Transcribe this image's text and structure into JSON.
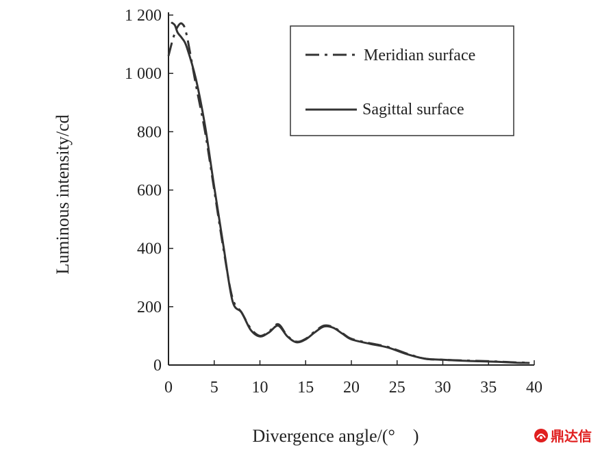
{
  "chart_data": {
    "type": "line",
    "title": "",
    "xlabel": "Divergence angle/(° )",
    "ylabel": "Luminous intensity/cd",
    "xlim": [
      0,
      40
    ],
    "ylim": [
      0,
      1200
    ],
    "x_ticks": [
      0,
      5,
      10,
      15,
      20,
      25,
      30,
      35,
      40
    ],
    "x_tick_labels": [
      "0",
      "5",
      "10",
      "15",
      "20",
      "25",
      "30",
      "35",
      "40"
    ],
    "y_ticks": [
      0,
      200,
      400,
      600,
      800,
      1000,
      1200
    ],
    "y_tick_labels": [
      "0",
      "200",
      "400",
      "600",
      "800",
      "1 000",
      "1 200"
    ],
    "grid": false,
    "legend_position": "top-right",
    "series": [
      {
        "name": "Meridian surface",
        "style": "dashed",
        "color": "#333333",
        "x": [
          0,
          0.5,
          1,
          1.5,
          2,
          3,
          4,
          5,
          6,
          7,
          8,
          9,
          10,
          11,
          12,
          13,
          14,
          15,
          16,
          17,
          18,
          19,
          20,
          22,
          24,
          26,
          28,
          30,
          32,
          34,
          36,
          38,
          39.5
        ],
        "y": [
          1060,
          1120,
          1160,
          1170,
          1130,
          960,
          800,
          600,
          400,
          230,
          180,
          125,
          100,
          115,
          140,
          100,
          80,
          90,
          115,
          135,
          130,
          110,
          90,
          75,
          62,
          40,
          22,
          18,
          16,
          14,
          12,
          9,
          8
        ]
      },
      {
        "name": "Sagittal surface",
        "style": "solid",
        "color": "#333333",
        "x": [
          0.3,
          0.7,
          1,
          1.5,
          2,
          3,
          4,
          5,
          6,
          7,
          8,
          9,
          10,
          11,
          12,
          13,
          14,
          15,
          16,
          17,
          18,
          19,
          20,
          22,
          24,
          26,
          28,
          30,
          32,
          34,
          36,
          38,
          39.5
        ],
        "y": [
          1175,
          1165,
          1140,
          1120,
          1090,
          980,
          820,
          610,
          410,
          220,
          180,
          120,
          98,
          112,
          135,
          98,
          78,
          88,
          112,
          132,
          128,
          108,
          88,
          73,
          60,
          38,
          22,
          18,
          15,
          13,
          11,
          8,
          7
        ]
      }
    ]
  },
  "watermark": {
    "text": "鼎达信",
    "color": "#e01e1e"
  }
}
